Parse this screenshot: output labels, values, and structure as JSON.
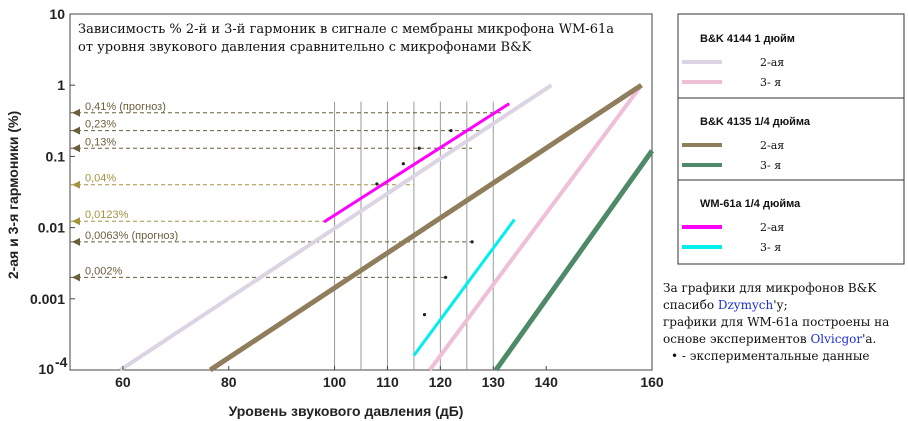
{
  "chart_data": {
    "type": "line",
    "title_lines": [
      "Зависимость %  2-й и 3-й гармоник в сигнале с мембраны микрофона WM-61a",
      "от уровня звукового давления сравнительно с микрофонами B&K"
    ],
    "xlabel": "Уровень звукового давления (дБ)",
    "ylabel": "2-ая и 3-я гармоники (%)",
    "xlim": [
      50,
      160
    ],
    "ylim": [
      0.0001,
      10
    ],
    "yscale": "log",
    "x_ticks": [
      "60",
      "80",
      "100",
      "110",
      "120",
      "130",
      "140",
      "160"
    ],
    "x_tick_values": [
      60,
      80,
      100,
      110,
      120,
      130,
      140,
      160
    ],
    "y_ticks": [
      "10",
      "1",
      "0.1",
      "0.01",
      "0.001",
      "10^-4"
    ],
    "y_tick_values": [
      10,
      1,
      0.1,
      0.01,
      0.001,
      0.0001
    ],
    "vertical_gridlines": [
      100,
      105,
      110,
      115,
      120,
      125,
      130
    ],
    "series": [
      {
        "name": "B&K 4144 — 2-ая",
        "color": "#dcd4e2",
        "width": 4,
        "points": [
          [
            59.5,
            0.0001
          ],
          [
            141,
            1
          ]
        ]
      },
      {
        "name": "B&K 4144 — 3-я",
        "color": "#efbfd7",
        "width": 4,
        "points": [
          [
            118,
            0.0001
          ],
          [
            158,
            1
          ]
        ]
      },
      {
        "name": "B&K 4135 — 2-ая",
        "color": "#8f7d5b",
        "width": 5,
        "points": [
          [
            76.5,
            0.0001
          ],
          [
            158,
            1
          ]
        ]
      },
      {
        "name": "B&K 4135 — 3-я",
        "color": "#4f8a68",
        "width": 5,
        "points": [
          [
            130.5,
            0.0001
          ],
          [
            160,
            0.12
          ]
        ]
      },
      {
        "name": "WM-61a — 2-ая",
        "color": "#ff00ff",
        "width": 3,
        "points": [
          [
            98,
            0.012
          ],
          [
            133,
            0.55
          ]
        ]
      },
      {
        "name": "WM-61a — 3-я",
        "color": "#00eeee",
        "width": 3,
        "points": [
          [
            115,
            0.00016
          ],
          [
            134,
            0.013
          ]
        ]
      }
    ],
    "experimental_points": [
      [
        108,
        0.041
      ],
      [
        113,
        0.079
      ],
      [
        116,
        0.13
      ],
      [
        122,
        0.23
      ],
      [
        117,
        0.0006
      ],
      [
        121,
        0.002
      ],
      [
        126,
        0.0063
      ]
    ],
    "reference_lines": [
      {
        "label": "0,41% (прогноз)",
        "value": 0.41,
        "x_end": 132,
        "color": "#6b5e3c"
      },
      {
        "label": "0,23%",
        "value": 0.23,
        "x_end": 128,
        "color": "#6b5e3c"
      },
      {
        "label": "0,13%",
        "value": 0.13,
        "x_end": 126,
        "color": "#6b5e3c"
      },
      {
        "label": "0,04%",
        "value": 0.04,
        "x_end": 115,
        "color": "#a49440"
      },
      {
        "label": "0,0123%",
        "value": 0.0123,
        "x_end": 98,
        "color": "#a49440"
      },
      {
        "label": "0,0063% (прогноз)",
        "value": 0.0063,
        "x_end": 126,
        "color": "#6b5e3c"
      },
      {
        "label": "0,002%",
        "value": 0.002,
        "x_end": 121,
        "color": "#6b5e3c"
      }
    ]
  },
  "legend": {
    "groups": [
      {
        "heading": "B&K 4144    1 дюйм",
        "entries": [
          {
            "label": "2-ая",
            "color": "#dcd4e2"
          },
          {
            "label": "3-  я",
            "color": "#efbfd7"
          }
        ]
      },
      {
        "heading": "B&K 4135   1/4 дюйма",
        "entries": [
          {
            "label": "2-ая",
            "color": "#8f7d5b"
          },
          {
            "label": "3-  я",
            "color": "#4f8a68"
          }
        ]
      },
      {
        "heading": "WM-61a   1/4 дюйма",
        "entries": [
          {
            "label": "2-ая",
            "color": "#ff00ff"
          },
          {
            "label": "3-  я",
            "color": "#00eeee"
          }
        ]
      }
    ]
  },
  "credits": {
    "line1": "За графики для микрофонов B&K",
    "line2_before": "спасибо ",
    "line2_link": "Dzymych",
    "line2_after": "'у;",
    "line3": "графики для WM-61a построены на",
    "line4_before": "основе экспериментов ",
    "line4_link": "Olvicgor",
    "line4_after": "'а.",
    "line5": "•   - экспериментальные данные"
  }
}
